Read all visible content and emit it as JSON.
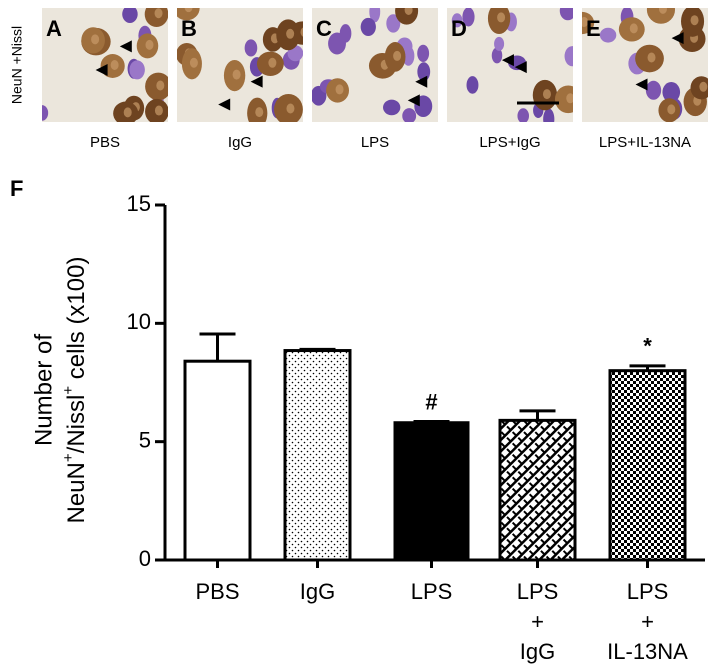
{
  "image_panels": {
    "side_label": "NeuN +Nissl",
    "panels": [
      {
        "letter": "A",
        "caption": "PBS"
      },
      {
        "letter": "B",
        "caption": "IgG"
      },
      {
        "letter": "C",
        "caption": "LPS"
      },
      {
        "letter": "D",
        "caption": "LPS+IgG"
      },
      {
        "letter": "E",
        "caption": "LPS+IL-13NA"
      }
    ]
  },
  "chart_data": {
    "type": "bar",
    "panel_letter": "F",
    "ylabel": {
      "line1": "Number of",
      "line2": [
        "NeuN",
        "+",
        "/Nissl",
        "+",
        " cells (x100)"
      ]
    },
    "categories": [
      [
        "PBS"
      ],
      [
        "IgG"
      ],
      [
        "LPS"
      ],
      [
        "LPS",
        "+",
        "IgG"
      ],
      [
        "LPS",
        "+",
        "IL-13NA"
      ]
    ],
    "values": [
      8.4,
      8.85,
      5.8,
      5.9,
      8.0
    ],
    "errors": [
      1.15,
      0.05,
      0.05,
      0.4,
      0.2
    ],
    "patterns": [
      "none",
      "dots",
      "solid",
      "bricks",
      "checker"
    ],
    "bar_annotations": [
      null,
      null,
      "#",
      null,
      "*"
    ],
    "ylim": [
      0,
      15
    ],
    "yticks": [
      0,
      5,
      10,
      15
    ],
    "color": "#000000"
  }
}
